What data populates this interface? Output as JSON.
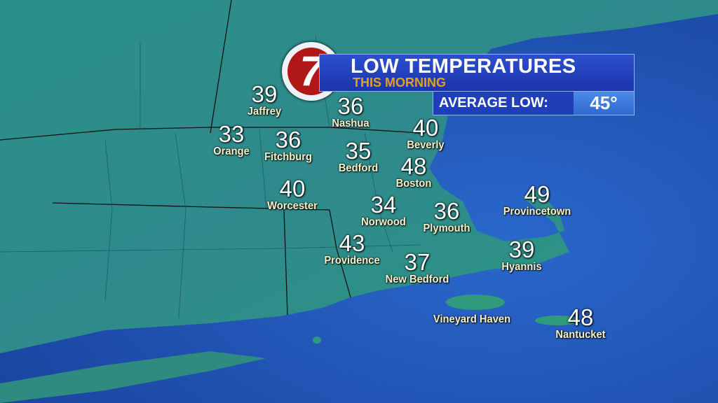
{
  "header": {
    "title": "LOW TEMPERATURES",
    "subtitle": "THIS MORNING",
    "average_label": "AVERAGE LOW:",
    "average_value": "45°"
  },
  "logo": {
    "text": "7"
  },
  "colors": {
    "ocean": "#2256b8",
    "land": "#2f8a86",
    "banner": "#2340c0",
    "subtitle": "#e0a020",
    "label": "#f5f0c8"
  },
  "cities": [
    {
      "name": "Jaffrey",
      "temp": "39"
    },
    {
      "name": "Nashua",
      "temp": "36"
    },
    {
      "name": "Orange",
      "temp": "33"
    },
    {
      "name": "Fitchburg",
      "temp": "36"
    },
    {
      "name": "Beverly",
      "temp": "40"
    },
    {
      "name": "Bedford",
      "temp": "35"
    },
    {
      "name": "Boston",
      "temp": "48"
    },
    {
      "name": "Worcester",
      "temp": "40"
    },
    {
      "name": "Norwood",
      "temp": "34"
    },
    {
      "name": "Plymouth",
      "temp": "36"
    },
    {
      "name": "Provincetown",
      "temp": "49"
    },
    {
      "name": "Hyannis",
      "temp": "39"
    },
    {
      "name": "Providence",
      "temp": "43"
    },
    {
      "name": "New Bedford",
      "temp": "37"
    },
    {
      "name": "Vineyard Haven",
      "temp": ""
    },
    {
      "name": "Nantucket",
      "temp": "48"
    }
  ]
}
